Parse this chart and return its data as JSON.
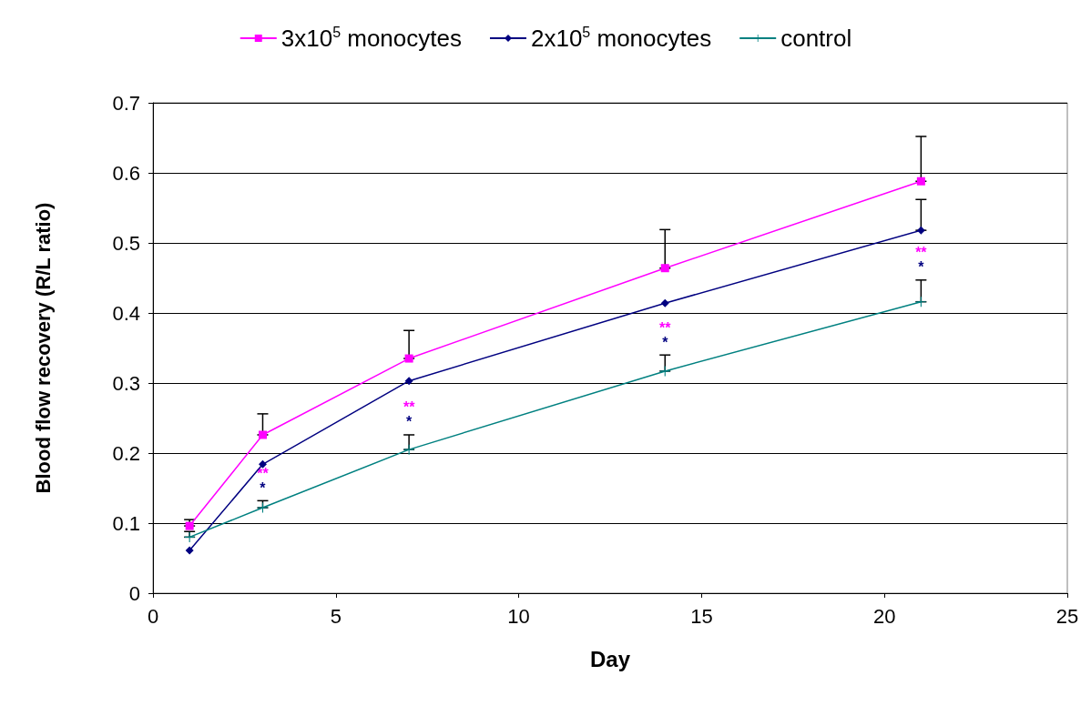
{
  "chart_data": {
    "type": "line",
    "xlabel": "Day",
    "ylabel": "Blood flow recovery (R/L ratio)",
    "x": [
      1,
      3,
      7,
      14,
      21
    ],
    "series": [
      {
        "name": "3x10$^{5}$ monocytes",
        "color": "#ff00ff",
        "marker": "square",
        "values": [
          0.096,
          0.226,
          0.335,
          0.464,
          0.588
        ],
        "errors": [
          [
            0.096,
            0.105
          ],
          [
            0.226,
            0.256
          ],
          [
            0.335,
            0.375
          ],
          [
            0.464,
            0.519
          ],
          [
            0.588,
            0.652
          ]
        ]
      },
      {
        "name": "2x10$^{5}$ monocytes",
        "color": "#000080",
        "marker": "diamond",
        "values": [
          0.061,
          0.184,
          0.303,
          0.414,
          0.518
        ],
        "errors": [
          null,
          null,
          null,
          null,
          [
            0.518,
            0.562
          ]
        ]
      },
      {
        "name": "control",
        "color": "#008080",
        "marker": "cross",
        "values": [
          0.08,
          0.122,
          0.205,
          0.317,
          0.416
        ],
        "errors": [
          [
            0.08,
            0.088
          ],
          [
            0.122,
            0.132
          ],
          [
            0.205,
            0.226
          ],
          [
            0.317,
            0.34
          ],
          [
            0.416,
            0.447
          ]
        ]
      }
    ],
    "annotations": [
      "**",
      "*",
      "**",
      "*",
      "**",
      "*",
      "**",
      "*"
    ],
    "xlim": [
      0,
      25
    ],
    "xticks": [
      0,
      5,
      10,
      15,
      20,
      25
    ],
    "ylim": [
      0,
      0.7
    ],
    "yticks": [
      0,
      0.1,
      0.2,
      0.3,
      0.4,
      0.5,
      0.6,
      0.7
    ],
    "grid": "y",
    "legend": "top"
  }
}
